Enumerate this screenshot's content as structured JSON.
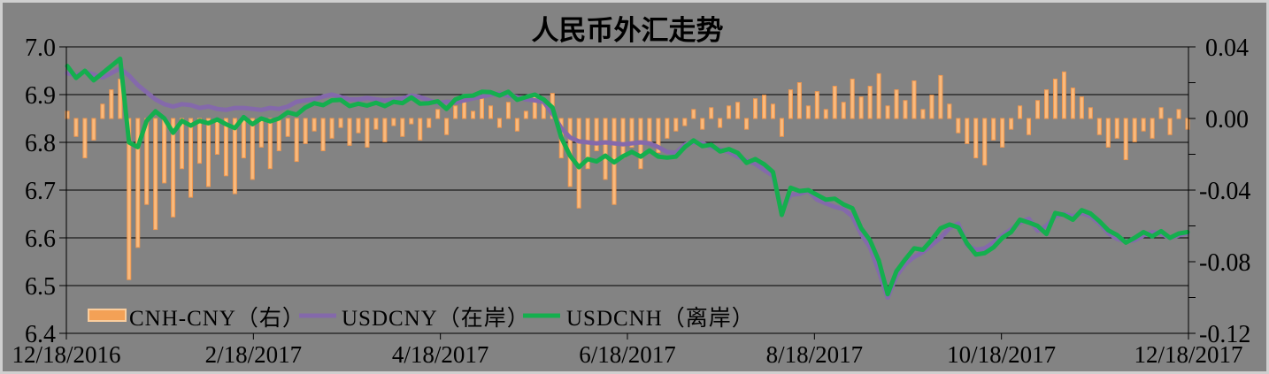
{
  "title": "人民币外汇走势",
  "colors": {
    "background": "#838383",
    "frame": "#CFCFCF",
    "grid": "#000000",
    "text": "#000000",
    "bar_fill": "#F9BA7D",
    "bar_edge": "#F2984E",
    "legend_bar_fill": "#F3A156",
    "legend_bar_edge": "#FACD9D",
    "usdcny_line": "#8469AB",
    "usdcnh_line": "#14AF4E"
  },
  "chart_data": {
    "type": "combo",
    "title": "人民币外汇走势",
    "legend_position": "bottom-left inside plot",
    "grid": "horizontal black gridlines at each left-axis tick, no vertical gridlines",
    "x_axis": {
      "start": "12/18/2016",
      "end": "12/18/2017",
      "tick_labels": [
        "12/18/2016",
        "2/18/2017",
        "4/18/2017",
        "6/18/2017",
        "8/18/2017",
        "10/18/2017",
        "12/18/2017"
      ]
    },
    "y_axis_left": {
      "min": 6.4,
      "max": 7.0,
      "tick_labels": [
        "7.0",
        "6.9",
        "6.8",
        "6.7",
        "6.6",
        "6.5",
        "6.4"
      ],
      "tick_values": [
        7.0,
        6.9,
        6.8,
        6.7,
        6.6,
        6.5,
        6.4
      ]
    },
    "y_axis_right": {
      "min": -0.12,
      "max": 0.04,
      "tick_labels": [
        "0.04",
        "0.00",
        "-0.04",
        "-0.08",
        "-0.12"
      ],
      "tick_values": [
        0.04,
        0.0,
        -0.04,
        -0.08,
        -0.12
      ],
      "minor_tick_step": 0.02
    },
    "n_points": 128,
    "sampling_note": "values estimated from pixels; 128 evenly spaced samples (~2.9 days apart) from 12/18/2016 to 12/18/2017",
    "series": [
      {
        "name": "CNH-CNY（右）",
        "type": "bar",
        "axis": "right",
        "values": [
          0.004,
          -0.01,
          -0.022,
          -0.012,
          0.008,
          0.016,
          0.022,
          -0.09,
          -0.072,
          -0.048,
          -0.062,
          -0.036,
          -0.055,
          -0.028,
          -0.044,
          -0.025,
          -0.038,
          -0.02,
          -0.032,
          -0.042,
          -0.022,
          -0.034,
          -0.016,
          -0.028,
          -0.018,
          -0.01,
          -0.024,
          -0.014,
          -0.007,
          -0.018,
          -0.011,
          -0.005,
          -0.015,
          -0.008,
          -0.016,
          -0.006,
          -0.013,
          -0.004,
          -0.01,
          -0.003,
          -0.012,
          -0.005,
          0.005,
          -0.009,
          0.007,
          0.01,
          0.004,
          0.011,
          0.007,
          -0.005,
          0.009,
          -0.007,
          0.004,
          0.013,
          0.01,
          0.014,
          -0.022,
          -0.038,
          -0.05,
          -0.028,
          -0.018,
          -0.034,
          -0.048,
          -0.022,
          -0.016,
          -0.028,
          -0.013,
          -0.019,
          -0.011,
          -0.007,
          -0.004,
          0.005,
          -0.006,
          0.006,
          -0.005,
          0.007,
          0.009,
          -0.006,
          0.011,
          0.013,
          0.008,
          -0.01,
          0.016,
          0.02,
          0.007,
          0.015,
          0.005,
          0.018,
          0.009,
          0.022,
          0.012,
          0.018,
          0.025,
          0.007,
          0.016,
          0.01,
          0.021,
          0.005,
          0.013,
          0.024,
          0.008,
          -0.008,
          -0.014,
          -0.022,
          -0.026,
          -0.012,
          -0.016,
          -0.006,
          0.007,
          -0.009,
          0.01,
          0.016,
          0.022,
          0.026,
          0.017,
          0.012,
          0.006,
          -0.009,
          -0.016,
          -0.011,
          -0.023,
          -0.013,
          -0.007,
          -0.011,
          0.006,
          -0.009,
          0.005,
          -0.006
        ]
      },
      {
        "name": "USDCNY（在岸）",
        "type": "line",
        "axis": "left",
        "values": [
          6.945,
          6.94,
          6.948,
          6.942,
          6.936,
          6.945,
          6.955,
          6.94,
          6.92,
          6.905,
          6.89,
          6.88,
          6.875,
          6.88,
          6.878,
          6.872,
          6.875,
          6.87,
          6.868,
          6.872,
          6.872,
          6.87,
          6.868,
          6.872,
          6.87,
          6.875,
          6.885,
          6.888,
          6.89,
          6.896,
          6.9,
          6.895,
          6.89,
          6.89,
          6.893,
          6.89,
          6.888,
          6.89,
          6.892,
          6.898,
          6.895,
          6.888,
          6.882,
          6.885,
          6.884,
          6.888,
          6.892,
          6.896,
          6.9,
          6.902,
          6.898,
          6.895,
          6.89,
          6.888,
          6.885,
          6.86,
          6.83,
          6.81,
          6.802,
          6.8,
          6.798,
          6.8,
          6.798,
          6.796,
          6.798,
          6.8,
          6.798,
          6.79,
          6.78,
          6.778,
          6.795,
          6.8,
          6.798,
          6.79,
          6.785,
          6.78,
          6.77,
          6.762,
          6.755,
          6.742,
          6.73,
          6.658,
          6.69,
          6.692,
          6.698,
          6.68,
          6.672,
          6.665,
          6.66,
          6.645,
          6.608,
          6.58,
          6.53,
          6.475,
          6.52,
          6.545,
          6.56,
          6.57,
          6.585,
          6.6,
          6.62,
          6.63,
          6.585,
          6.575,
          6.578,
          6.59,
          6.605,
          6.618,
          6.632,
          6.64,
          6.615,
          6.625,
          6.645,
          6.65,
          6.645,
          6.652,
          6.645,
          6.63,
          6.61,
          6.598,
          6.592,
          6.595,
          6.605,
          6.612,
          6.608,
          6.6,
          6.605,
          6.61
        ]
      },
      {
        "name": "USDCNH（离岸）",
        "type": "line",
        "axis": "left",
        "values": [
          6.96,
          6.935,
          6.95,
          6.93,
          6.945,
          6.96,
          6.975,
          6.8,
          6.79,
          6.845,
          6.865,
          6.85,
          6.82,
          6.845,
          6.835,
          6.845,
          6.84,
          6.848,
          6.838,
          6.83,
          6.853,
          6.838,
          6.85,
          6.844,
          6.85,
          6.863,
          6.858,
          6.873,
          6.882,
          6.878,
          6.888,
          6.889,
          6.876,
          6.881,
          6.877,
          6.883,
          6.876,
          6.885,
          6.882,
          6.894,
          6.881,
          6.882,
          6.886,
          6.87,
          6.89,
          6.897,
          6.898,
          6.906,
          6.905,
          6.898,
          6.906,
          6.889,
          6.895,
          6.9,
          6.89,
          6.873,
          6.81,
          6.772,
          6.748,
          6.765,
          6.76,
          6.772,
          6.758,
          6.771,
          6.78,
          6.77,
          6.783,
          6.77,
          6.768,
          6.77,
          6.79,
          6.804,
          6.792,
          6.795,
          6.781,
          6.786,
          6.778,
          6.757,
          6.765,
          6.754,
          6.738,
          6.648,
          6.705,
          6.698,
          6.7,
          6.69,
          6.68,
          6.682,
          6.67,
          6.662,
          6.62,
          6.595,
          6.552,
          6.482,
          6.53,
          6.555,
          6.578,
          6.575,
          6.596,
          6.62,
          6.628,
          6.622,
          6.588,
          6.565,
          6.568,
          6.58,
          6.6,
          6.612,
          6.638,
          6.632,
          6.625,
          6.608,
          6.652,
          6.648,
          6.638,
          6.658,
          6.651,
          6.635,
          6.616,
          6.606,
          6.59,
          6.6,
          6.612,
          6.603,
          6.614,
          6.6,
          6.609,
          6.612
        ]
      }
    ]
  }
}
